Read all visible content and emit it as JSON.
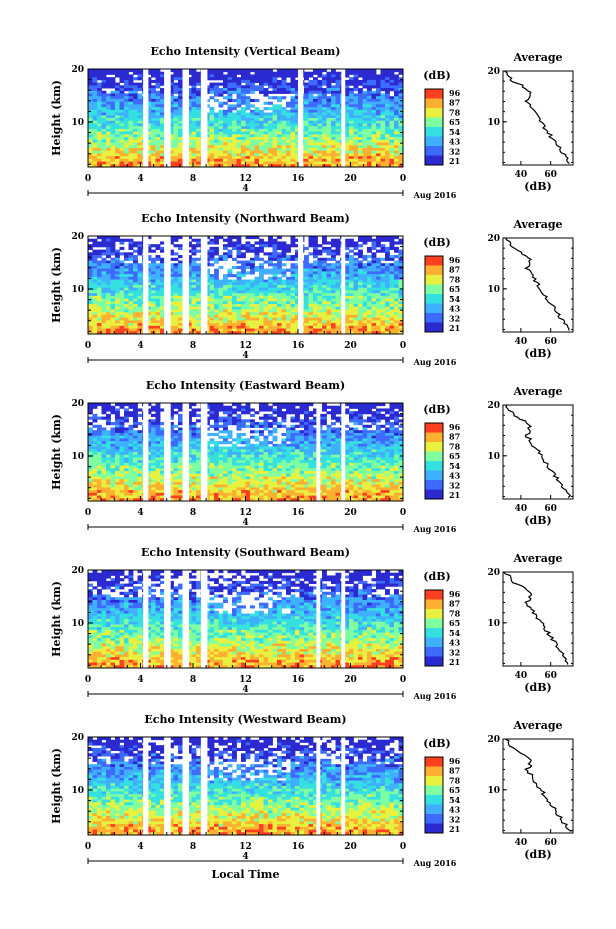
{
  "figure": {
    "xlabel": "Local Time",
    "date_label": "Aug 2016",
    "day_label": "4",
    "cbar_unit": "(dB)",
    "colorbar_ticks": [
      "96",
      "87",
      "78",
      "65",
      "54",
      "43",
      "32",
      "21"
    ],
    "colors": [
      "#2a2ad0",
      "#3d6bff",
      "#3fb0ff",
      "#35e0e0",
      "#7fffa0",
      "#e8f040",
      "#ffb030",
      "#ff4020"
    ]
  },
  "chart_data": [
    {
      "type": "heatmap",
      "title": "Echo Intensity (Vertical Beam)",
      "ylabel": "Height (km)",
      "x_ticks": [
        "0",
        "4",
        "8",
        "12",
        "16",
        "20",
        "0"
      ],
      "y_ticks": [
        "20",
        "10"
      ],
      "xlim": [
        0,
        24
      ],
      "ylim": [
        1.5,
        20
      ],
      "gaps_hours": [
        [
          4.2,
          4.6
        ],
        [
          5.8,
          6.3
        ],
        [
          7.2,
          7.7
        ],
        [
          8.6,
          9.1
        ],
        [
          16.0,
          16.4
        ],
        [
          19.3,
          19.6
        ]
      ],
      "average": {
        "title": "Average",
        "xlabel": "(dB)",
        "x_ticks": [
          "40",
          "60"
        ],
        "y_ticks": [
          "20",
          "10"
        ]
      }
    },
    {
      "type": "heatmap",
      "title": "Echo Intensity (Northward Beam)",
      "ylabel": "Height (km)",
      "x_ticks": [
        "0",
        "4",
        "8",
        "12",
        "16",
        "20",
        "0"
      ],
      "y_ticks": [
        "20",
        "10"
      ],
      "xlim": [
        0,
        24
      ],
      "ylim": [
        1.5,
        20
      ],
      "gaps_hours": [
        [
          4.2,
          4.6
        ],
        [
          5.8,
          6.3
        ],
        [
          7.2,
          7.7
        ],
        [
          8.6,
          9.1
        ],
        [
          16.0,
          16.4
        ],
        [
          19.3,
          19.6
        ]
      ],
      "average": {
        "title": "Average",
        "xlabel": "(dB)",
        "x_ticks": [
          "40",
          "60"
        ],
        "y_ticks": [
          "20",
          "10"
        ]
      }
    },
    {
      "type": "heatmap",
      "title": "Echo Intensity (Eastward Beam)",
      "ylabel": "Height (km)",
      "x_ticks": [
        "0",
        "4",
        "8",
        "12",
        "16",
        "20",
        "0"
      ],
      "y_ticks": [
        "20",
        "10"
      ],
      "xlim": [
        0,
        24
      ],
      "ylim": [
        1.5,
        20
      ],
      "gaps_hours": [
        [
          4.2,
          4.6
        ],
        [
          5.8,
          6.3
        ],
        [
          7.2,
          7.7
        ],
        [
          8.6,
          9.1
        ],
        [
          17.4,
          17.7
        ],
        [
          19.3,
          19.6
        ]
      ],
      "average": {
        "title": "Average",
        "xlabel": "(dB)",
        "x_ticks": [
          "40",
          "60"
        ],
        "y_ticks": [
          "20",
          "10"
        ]
      }
    },
    {
      "type": "heatmap",
      "title": "Echo Intensity (Southward Beam)",
      "ylabel": "Height (km)",
      "x_ticks": [
        "0",
        "4",
        "8",
        "12",
        "16",
        "20",
        "0"
      ],
      "y_ticks": [
        "20",
        "10"
      ],
      "xlim": [
        0,
        24
      ],
      "ylim": [
        1.5,
        20
      ],
      "gaps_hours": [
        [
          4.2,
          4.6
        ],
        [
          5.8,
          6.3
        ],
        [
          7.2,
          7.7
        ],
        [
          8.6,
          9.1
        ],
        [
          17.4,
          17.7
        ],
        [
          19.3,
          19.6
        ]
      ],
      "average": {
        "title": "Average",
        "xlabel": "(dB)",
        "x_ticks": [
          "40",
          "60"
        ],
        "y_ticks": [
          "20",
          "10"
        ]
      }
    },
    {
      "type": "heatmap",
      "title": "Echo Intensity (Westward Beam)",
      "ylabel": "Height (km)",
      "x_ticks": [
        "0",
        "4",
        "8",
        "12",
        "16",
        "20",
        "0"
      ],
      "y_ticks": [
        "20",
        "10"
      ],
      "xlim": [
        0,
        24
      ],
      "ylim": [
        1.5,
        20
      ],
      "gaps_hours": [
        [
          4.2,
          4.6
        ],
        [
          5.8,
          6.3
        ],
        [
          7.2,
          7.7
        ],
        [
          8.6,
          9.1
        ],
        [
          17.4,
          17.7
        ],
        [
          19.3,
          19.6
        ]
      ],
      "average": {
        "title": "Average",
        "xlabel": "(dB)",
        "x_ticks": [
          "40",
          "60"
        ],
        "y_ticks": [
          "20",
          "10"
        ]
      }
    }
  ]
}
